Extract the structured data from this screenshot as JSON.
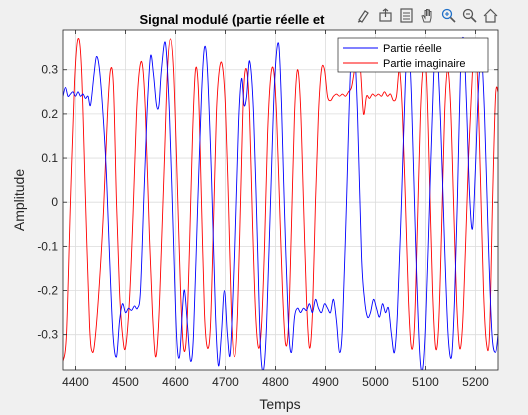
{
  "chart_data": {
    "type": "line",
    "title": "Signal modulé (partie réelle et",
    "xlabel": "Temps",
    "ylabel": "Amplitude",
    "xlim": [
      4375,
      5245
    ],
    "ylim": [
      -0.38,
      0.39
    ],
    "xticks": [
      4400,
      4500,
      4600,
      4700,
      4800,
      4900,
      5000,
      5100,
      5200
    ],
    "xtick_labels": [
      "4400",
      "4500",
      "4600",
      "4700",
      "4800",
      "4900",
      "5000",
      "5100",
      "5200"
    ],
    "yticks": [
      -0.3,
      -0.2,
      -0.1,
      0,
      0.1,
      0.2,
      0.3
    ],
    "ytick_labels": [
      "-0.3",
      "-0.2",
      "-0.1",
      "0",
      "0.1",
      "0.2",
      "0.3"
    ],
    "grid": true,
    "legend_position": "top-right",
    "series": [
      {
        "name": "Partie réelle",
        "color": "#0000ff",
        "points": [
          [
            4375,
            0.24
          ],
          [
            4380,
            0.26
          ],
          [
            4385,
            0.24
          ],
          [
            4390,
            0.245
          ],
          [
            4395,
            0.25
          ],
          [
            4400,
            0.24
          ],
          [
            4405,
            0.25
          ],
          [
            4410,
            0.24
          ],
          [
            4415,
            0.245
          ],
          [
            4420,
            0.235
          ],
          [
            4425,
            0.24
          ],
          [
            4430,
            0.22
          ],
          [
            4437,
            0.29
          ],
          [
            4442,
            0.33
          ],
          [
            4448,
            0.3
          ],
          [
            4455,
            0.2
          ],
          [
            4462,
            0.06
          ],
          [
            4468,
            -0.12
          ],
          [
            4475,
            -0.3
          ],
          [
            4482,
            -0.35
          ],
          [
            4488,
            -0.27
          ],
          [
            4494,
            -0.23
          ],
          [
            4500,
            -0.25
          ],
          [
            4506,
            -0.24
          ],
          [
            4512,
            -0.245
          ],
          [
            4518,
            -0.235
          ],
          [
            4524,
            -0.24
          ],
          [
            4530,
            -0.2
          ],
          [
            4537,
            0.02
          ],
          [
            4543,
            0.2
          ],
          [
            4550,
            0.33
          ],
          [
            4556,
            0.29
          ],
          [
            4562,
            0.22
          ],
          [
            4567,
            0.22
          ],
          [
            4572,
            0.3
          ],
          [
            4580,
            0.36
          ],
          [
            4588,
            0.2
          ],
          [
            4595,
            -0.05
          ],
          [
            4602,
            -0.3
          ],
          [
            4608,
            -0.35
          ],
          [
            4614,
            -0.24
          ],
          [
            4618,
            -0.2
          ],
          [
            4624,
            -0.28
          ],
          [
            4630,
            -0.36
          ],
          [
            4636,
            -0.3
          ],
          [
            4644,
            -0.02
          ],
          [
            4652,
            0.24
          ],
          [
            4658,
            0.35
          ],
          [
            4664,
            0.3
          ],
          [
            4672,
            0.06
          ],
          [
            4680,
            -0.25
          ],
          [
            4686,
            -0.37
          ],
          [
            4692,
            -0.3
          ],
          [
            4698,
            -0.2
          ],
          [
            4704,
            -0.3
          ],
          [
            4710,
            -0.34
          ],
          [
            4718,
            -0.12
          ],
          [
            4726,
            0.18
          ],
          [
            4732,
            0.28
          ],
          [
            4737,
            0.22
          ],
          [
            4742,
            0.24
          ],
          [
            4748,
            0.32
          ],
          [
            4756,
            0.2
          ],
          [
            4764,
            -0.1
          ],
          [
            4770,
            -0.33
          ],
          [
            4776,
            -0.38
          ],
          [
            4782,
            -0.28
          ],
          [
            4790,
            0.0
          ],
          [
            4798,
            0.27
          ],
          [
            4806,
            0.36
          ],
          [
            4812,
            0.22
          ],
          [
            4818,
            -0.02
          ],
          [
            4826,
            -0.28
          ],
          [
            4832,
            -0.34
          ],
          [
            4838,
            -0.26
          ],
          [
            4844,
            -0.24
          ],
          [
            4850,
            -0.25
          ],
          [
            4856,
            -0.24
          ],
          [
            4862,
            -0.245
          ],
          [
            4868,
            -0.23
          ],
          [
            4874,
            -0.25
          ],
          [
            4880,
            -0.22
          ],
          [
            4886,
            -0.24
          ],
          [
            4892,
            -0.25
          ],
          [
            4898,
            -0.23
          ],
          [
            4904,
            -0.24
          ],
          [
            4910,
            -0.25
          ],
          [
            4916,
            -0.22
          ],
          [
            4922,
            -0.27
          ],
          [
            4928,
            -0.34
          ],
          [
            4934,
            -0.28
          ],
          [
            4942,
            0.0
          ],
          [
            4950,
            0.3
          ],
          [
            4957,
            0.36
          ],
          [
            4964,
            0.2
          ],
          [
            4972,
            -0.12
          ],
          [
            4978,
            -0.22
          ],
          [
            4984,
            -0.26
          ],
          [
            4990,
            -0.25
          ],
          [
            4996,
            -0.22
          ],
          [
            5002,
            -0.24
          ],
          [
            5008,
            -0.26
          ],
          [
            5014,
            -0.23
          ],
          [
            5020,
            -0.25
          ],
          [
            5026,
            -0.24
          ],
          [
            5032,
            -0.3
          ],
          [
            5038,
            -0.34
          ],
          [
            5044,
            -0.25
          ],
          [
            5052,
            0.0
          ],
          [
            5060,
            0.28
          ],
          [
            5066,
            0.36
          ],
          [
            5072,
            0.24
          ],
          [
            5080,
            -0.08
          ],
          [
            5088,
            -0.33
          ],
          [
            5094,
            -0.38
          ],
          [
            5100,
            -0.28
          ],
          [
            5108,
            0.0
          ],
          [
            5116,
            0.28
          ],
          [
            5122,
            0.36
          ],
          [
            5130,
            0.18
          ],
          [
            5138,
            -0.1
          ],
          [
            5145,
            -0.3
          ],
          [
            5152,
            -0.35
          ],
          [
            5158,
            -0.22
          ],
          [
            5164,
            0.02
          ],
          [
            5170,
            0.3
          ],
          [
            5176,
            0.37
          ],
          [
            5182,
            0.22
          ],
          [
            5188,
            0.02
          ],
          [
            5194,
            -0.06
          ],
          [
            5200,
            0.08
          ],
          [
            5206,
            0.26
          ],
          [
            5212,
            0.33
          ],
          [
            5218,
            0.2
          ],
          [
            5226,
            -0.1
          ],
          [
            5233,
            -0.3
          ],
          [
            5240,
            -0.34
          ],
          [
            5245,
            -0.3
          ]
        ]
      },
      {
        "name": "Partie imaginaire",
        "color": "#ff0000",
        "points": [
          [
            4375,
            -0.36
          ],
          [
            4382,
            -0.3
          ],
          [
            4390,
            0.0
          ],
          [
            4398,
            0.27
          ],
          [
            4405,
            0.37
          ],
          [
            4412,
            0.3
          ],
          [
            4420,
            0.0
          ],
          [
            4428,
            -0.28
          ],
          [
            4434,
            -0.34
          ],
          [
            4440,
            -0.3
          ],
          [
            4448,
            -0.18
          ],
          [
            4456,
            -0.02
          ],
          [
            4464,
            0.2
          ],
          [
            4470,
            0.3
          ],
          [
            4476,
            0.26
          ],
          [
            4482,
            0.0
          ],
          [
            4488,
            -0.2
          ],
          [
            4494,
            -0.3
          ],
          [
            4500,
            -0.33
          ],
          [
            4508,
            -0.22
          ],
          [
            4515,
            -0.03
          ],
          [
            4522,
            0.2
          ],
          [
            4528,
            0.3
          ],
          [
            4534,
            0.31
          ],
          [
            4540,
            0.2
          ],
          [
            4548,
            -0.08
          ],
          [
            4554,
            -0.25
          ],
          [
            4560,
            -0.35
          ],
          [
            4566,
            -0.28
          ],
          [
            4572,
            -0.1
          ],
          [
            4578,
            0.1
          ],
          [
            4584,
            0.3
          ],
          [
            4590,
            0.37
          ],
          [
            4596,
            0.3
          ],
          [
            4602,
            0.1
          ],
          [
            4610,
            -0.2
          ],
          [
            4616,
            -0.33
          ],
          [
            4622,
            -0.3
          ],
          [
            4628,
            -0.1
          ],
          [
            4634,
            0.15
          ],
          [
            4640,
            0.3
          ],
          [
            4646,
            0.25
          ],
          [
            4652,
            0.0
          ],
          [
            4658,
            -0.25
          ],
          [
            4664,
            -0.33
          ],
          [
            4670,
            -0.28
          ],
          [
            4676,
            -0.05
          ],
          [
            4682,
            0.2
          ],
          [
            4688,
            0.3
          ],
          [
            4694,
            0.31
          ],
          [
            4700,
            0.22
          ],
          [
            4706,
            0.0
          ],
          [
            4712,
            -0.25
          ],
          [
            4718,
            -0.35
          ],
          [
            4724,
            -0.25
          ],
          [
            4730,
            0.0
          ],
          [
            4736,
            0.25
          ],
          [
            4742,
            0.3
          ],
          [
            4748,
            0.2
          ],
          [
            4754,
            -0.05
          ],
          [
            4760,
            -0.25
          ],
          [
            4766,
            -0.33
          ],
          [
            4772,
            -0.28
          ],
          [
            4778,
            -0.1
          ],
          [
            4784,
            0.15
          ],
          [
            4790,
            0.28
          ],
          [
            4796,
            0.3
          ],
          [
            4802,
            0.2
          ],
          [
            4808,
            0.0
          ],
          [
            4814,
            -0.2
          ],
          [
            4820,
            -0.32
          ],
          [
            4826,
            -0.28
          ],
          [
            4832,
            -0.05
          ],
          [
            4838,
            0.2
          ],
          [
            4844,
            0.3
          ],
          [
            4850,
            0.22
          ],
          [
            4856,
            0.0
          ],
          [
            4862,
            -0.22
          ],
          [
            4868,
            -0.33
          ],
          [
            4874,
            -0.25
          ],
          [
            4880,
            0.0
          ],
          [
            4886,
            0.2
          ],
          [
            4892,
            0.3
          ],
          [
            4898,
            0.3
          ],
          [
            4904,
            0.24
          ],
          [
            4910,
            0.23
          ],
          [
            4916,
            0.24
          ],
          [
            4922,
            0.245
          ],
          [
            4928,
            0.24
          ],
          [
            4934,
            0.245
          ],
          [
            4940,
            0.24
          ],
          [
            4946,
            0.25
          ],
          [
            4952,
            0.26
          ],
          [
            4958,
            0.3
          ],
          [
            4964,
            0.34
          ],
          [
            4970,
            0.3
          ],
          [
            4976,
            0.2
          ],
          [
            4982,
            0.24
          ],
          [
            4988,
            0.235
          ],
          [
            4994,
            0.245
          ],
          [
            5000,
            0.24
          ],
          [
            5006,
            0.245
          ],
          [
            5012,
            0.24
          ],
          [
            5018,
            0.25
          ],
          [
            5024,
            0.24
          ],
          [
            5030,
            0.245
          ],
          [
            5036,
            0.23
          ],
          [
            5042,
            0.24
          ],
          [
            5048,
            0.3
          ],
          [
            5054,
            0.2
          ],
          [
            5060,
            0.0
          ],
          [
            5066,
            -0.22
          ],
          [
            5072,
            -0.33
          ],
          [
            5078,
            -0.28
          ],
          [
            5084,
            -0.05
          ],
          [
            5090,
            0.2
          ],
          [
            5096,
            0.31
          ],
          [
            5102,
            0.28
          ],
          [
            5108,
            0.05
          ],
          [
            5114,
            -0.2
          ],
          [
            5120,
            -0.33
          ],
          [
            5126,
            -0.28
          ],
          [
            5132,
            -0.06
          ],
          [
            5138,
            0.2
          ],
          [
            5144,
            0.3
          ],
          [
            5150,
            0.22
          ],
          [
            5156,
            0.0
          ],
          [
            5162,
            -0.22
          ],
          [
            5168,
            -0.33
          ],
          [
            5174,
            -0.28
          ],
          [
            5180,
            -0.1
          ],
          [
            5186,
            0.1
          ],
          [
            5192,
            0.25
          ],
          [
            5198,
            0.36
          ],
          [
            5204,
            0.28
          ],
          [
            5210,
            0.05
          ],
          [
            5216,
            -0.2
          ],
          [
            5222,
            -0.32
          ],
          [
            5228,
            -0.3
          ],
          [
            5234,
            0.0
          ],
          [
            5240,
            0.24
          ],
          [
            5245,
            0.25
          ]
        ]
      }
    ]
  },
  "toolbar": {
    "icons": [
      "brush-icon",
      "save-export-icon",
      "legend-icon",
      "pan-hand-icon",
      "zoom-in-icon",
      "zoom-out-icon",
      "home-icon"
    ]
  }
}
